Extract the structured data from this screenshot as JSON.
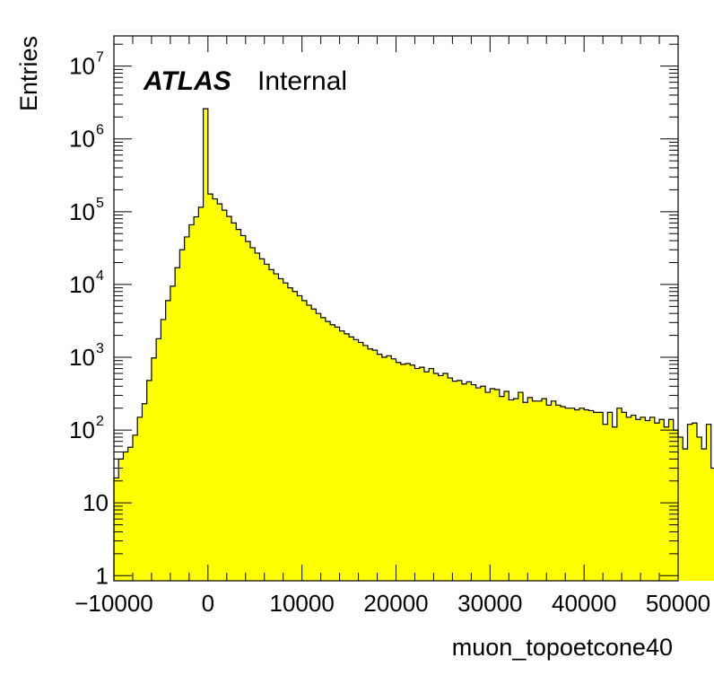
{
  "chart_data": {
    "type": "bar",
    "subtype": "histogram",
    "xlabel": "muon_topoetcone40",
    "ylabel": "Entries",
    "xlim": [
      -10000,
      50000
    ],
    "ylim": [
      0.85,
      26000000
    ],
    "log_y": true,
    "grid": false,
    "bar_color": "#ffff00",
    "bin_width": 500,
    "annotation": {
      "bold": "ATLAS",
      "normal": "Internal"
    },
    "x_ticks": [
      {
        "value": -10000,
        "label": "−10000"
      },
      {
        "value": 0,
        "label": "0"
      },
      {
        "value": 10000,
        "label": "10000"
      },
      {
        "value": 20000,
        "label": "20000"
      },
      {
        "value": 30000,
        "label": "30000"
      },
      {
        "value": 40000,
        "label": "40000"
      },
      {
        "value": 50000,
        "label": "50000"
      }
    ],
    "y_ticks": [
      {
        "value": 1,
        "base": "1",
        "exp": ""
      },
      {
        "value": 10,
        "base": "10",
        "exp": ""
      },
      {
        "value": 100,
        "base": "10",
        "exp": "2"
      },
      {
        "value": 1000,
        "base": "10",
        "exp": "3"
      },
      {
        "value": 10000,
        "base": "10",
        "exp": "4"
      },
      {
        "value": 100000,
        "base": "10",
        "exp": "5"
      },
      {
        "value": 1000000,
        "base": "10",
        "exp": "6"
      },
      {
        "value": 10000000,
        "base": "10",
        "exp": "7"
      }
    ],
    "bin_edges_start": -10000,
    "values": [
      22,
      40,
      50,
      58,
      85,
      150,
      230,
      480,
      980,
      1800,
      3300,
      6000,
      9500,
      17000,
      30000,
      45000,
      66000,
      85000,
      115000,
      2600000,
      175000,
      150000,
      128000,
      105000,
      86000,
      70000,
      57000,
      47000,
      39000,
      32000,
      27000,
      22500,
      19000,
      16000,
      14000,
      12000,
      10500,
      9000,
      8000,
      7000,
      6000,
      5200,
      4600,
      4000,
      3500,
      3100,
      2800,
      2600,
      2300,
      2100,
      1900,
      1750,
      1600,
      1450,
      1300,
      1250,
      1100,
      1000,
      1050,
      950,
      850,
      800,
      820,
      780,
      700,
      730,
      630,
      700,
      600,
      560,
      600,
      520,
      470,
      480,
      430,
      460,
      420,
      380,
      400,
      330,
      370,
      360,
      290,
      340,
      260,
      270,
      330,
      240,
      280,
      250,
      250,
      270,
      220,
      250,
      220,
      210,
      200,
      200,
      190,
      200,
      190,
      185,
      175,
      175,
      120,
      175,
      110,
      200,
      175,
      150,
      160,
      140,
      150,
      135,
      150,
      125,
      140,
      110,
      140,
      100,
      80,
      55,
      120,
      125,
      80,
      55,
      120,
      30
    ]
  }
}
